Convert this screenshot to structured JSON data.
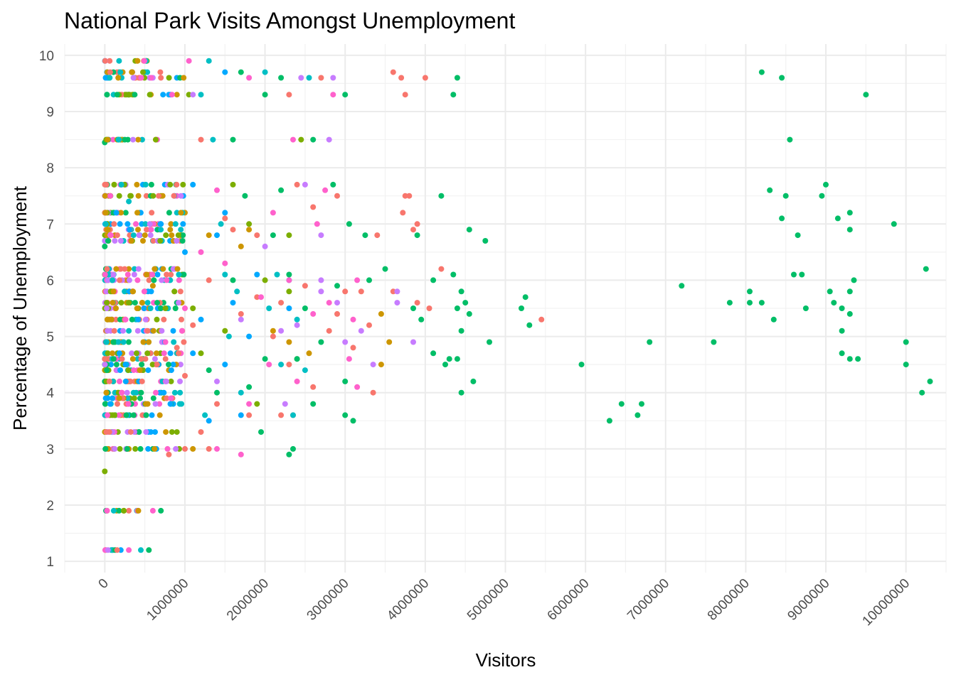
{
  "chart_data": {
    "type": "scatter",
    "title": "National Park Visits Amongst Unemployment",
    "xlabel": "Visitors",
    "ylabel": "Percentage of Unemployment",
    "xlim": [
      -500000,
      10500000
    ],
    "ylim": [
      0.8,
      10.2
    ],
    "x_ticks": [
      "0",
      "1000000",
      "2000000",
      "3000000",
      "4000000",
      "5000000",
      "6000000",
      "7000000",
      "8000000",
      "9000000",
      "10000000"
    ],
    "y_ticks": [
      "1",
      "2",
      "3",
      "4",
      "5",
      "6",
      "7",
      "8",
      "9",
      "10"
    ],
    "grid": true,
    "legend": "none",
    "colors": [
      "#F8766D",
      "#CD9600",
      "#7CAE00",
      "#00BE67",
      "#00BFC4",
      "#00A9FF",
      "#C77CFF",
      "#FF61CC"
    ],
    "series": [
      {
        "color": "#F8766D",
        "points": [
          [
            3600000,
            9.7
          ],
          [
            3700000,
            9.6
          ],
          [
            4000000,
            9.6
          ],
          [
            3750000,
            9.3
          ],
          [
            3750000,
            7.5
          ],
          [
            3800000,
            7.5
          ],
          [
            3720000,
            7.2
          ],
          [
            3900000,
            7.0
          ],
          [
            3850000,
            6.9
          ],
          [
            3400000,
            6.8
          ],
          [
            4200000,
            6.2
          ],
          [
            3900000,
            5.6
          ],
          [
            4050000,
            5.5
          ],
          [
            5450000,
            5.3
          ],
          [
            3600000,
            5.8
          ],
          [
            3000000,
            5.8
          ],
          [
            3200000,
            5.8
          ],
          [
            2500000,
            5.9
          ],
          [
            2200000,
            5.6
          ],
          [
            1900000,
            5.7
          ],
          [
            1700000,
            5.4
          ],
          [
            2100000,
            5.0
          ],
          [
            2800000,
            5.1
          ],
          [
            3300000,
            5.2
          ],
          [
            3100000,
            4.8
          ],
          [
            2300000,
            4.5
          ],
          [
            2600000,
            4.1
          ],
          [
            1400000,
            3.8
          ],
          [
            2200000,
            3.6
          ],
          [
            1300000,
            3.0
          ],
          [
            1000000,
            3.0
          ],
          [
            800000,
            2.9
          ],
          [
            1200000,
            3.3
          ],
          [
            1000000,
            4.3
          ],
          [
            2400000,
            7.7
          ],
          [
            2600000,
            7.3
          ],
          [
            2900000,
            7.5
          ],
          [
            1500000,
            7.1
          ],
          [
            1600000,
            6.9
          ],
          [
            1900000,
            6.8
          ],
          [
            2700000,
            9.6
          ],
          [
            2300000,
            9.3
          ],
          [
            1200000,
            8.5
          ],
          [
            700000,
            9.6
          ],
          [
            400000,
            9.9
          ],
          [
            2900000,
            5.4
          ],
          [
            3350000,
            4.0
          ],
          [
            1800000,
            3.6
          ],
          [
            2350000,
            3.6
          ],
          [
            900000,
            4.8
          ],
          [
            1100000,
            5.2
          ],
          [
            1300000,
            6.0
          ],
          [
            300000,
            1.9
          ],
          [
            100000,
            1.2
          ]
        ]
      },
      {
        "color": "#CD9600",
        "points": [
          [
            1000000,
            7.2
          ],
          [
            1300000,
            6.8
          ],
          [
            1800000,
            6.9
          ],
          [
            2300000,
            4.9
          ],
          [
            3450000,
            5.4
          ],
          [
            3450000,
            4.5
          ],
          [
            3550000,
            4.9
          ],
          [
            2100000,
            5.1
          ],
          [
            600000,
            5.9
          ],
          [
            900000,
            9.3
          ],
          [
            400000,
            7.7
          ],
          [
            300000,
            6.2
          ],
          [
            800000,
            4.4
          ],
          [
            1100000,
            3.0
          ],
          [
            200000,
            3.6
          ],
          [
            100000,
            3.3
          ],
          [
            0,
            4.6
          ],
          [
            500000,
            5.8
          ],
          [
            1700000,
            6.6
          ],
          [
            2550000,
            4.7
          ]
        ]
      },
      {
        "color": "#7CAE00",
        "points": [
          [
            0,
            2.6
          ],
          [
            2300000,
            5.8
          ],
          [
            2400000,
            4.6
          ],
          [
            2300000,
            6.8
          ],
          [
            1600000,
            7.7
          ],
          [
            1800000,
            7.0
          ],
          [
            2000000,
            6.0
          ],
          [
            1500000,
            5.1
          ],
          [
            1200000,
            4.7
          ],
          [
            1900000,
            3.8
          ],
          [
            2450000,
            8.5
          ],
          [
            1050000,
            9.3
          ],
          [
            700000,
            7.5
          ],
          [
            600000,
            6.1
          ],
          [
            900000,
            3.3
          ],
          [
            1100000,
            5.5
          ],
          [
            200000,
            8.5
          ]
        ]
      },
      {
        "color": "#00BE67",
        "points": [
          [
            8200000,
            9.7
          ],
          [
            8450000,
            9.6
          ],
          [
            9500000,
            9.3
          ],
          [
            8550000,
            8.5
          ],
          [
            8300000,
            7.6
          ],
          [
            8500000,
            7.5
          ],
          [
            9000000,
            7.7
          ],
          [
            8950000,
            7.5
          ],
          [
            9300000,
            7.2
          ],
          [
            9150000,
            7.1
          ],
          [
            8450000,
            7.1
          ],
          [
            9300000,
            6.9
          ],
          [
            9850000,
            7.0
          ],
          [
            8650000,
            6.8
          ],
          [
            8600000,
            6.1
          ],
          [
            8700000,
            6.1
          ],
          [
            9350000,
            6.0
          ],
          [
            10250000,
            6.2
          ],
          [
            7200000,
            5.9
          ],
          [
            8050000,
            5.8
          ],
          [
            9050000,
            5.8
          ],
          [
            9300000,
            5.8
          ],
          [
            7800000,
            5.6
          ],
          [
            8050000,
            5.6
          ],
          [
            8200000,
            5.6
          ],
          [
            9100000,
            5.6
          ],
          [
            8750000,
            5.5
          ],
          [
            9200000,
            5.5
          ],
          [
            9300000,
            5.4
          ],
          [
            8350000,
            5.3
          ],
          [
            9200000,
            5.1
          ],
          [
            6800000,
            4.9
          ],
          [
            7600000,
            4.9
          ],
          [
            9200000,
            4.7
          ],
          [
            9300000,
            4.6
          ],
          [
            9400000,
            4.6
          ],
          [
            10000000,
            4.9
          ],
          [
            10000000,
            4.5
          ],
          [
            10300000,
            4.2
          ],
          [
            10200000,
            4.0
          ],
          [
            5950000,
            4.5
          ],
          [
            6450000,
            3.8
          ],
          [
            6700000,
            3.8
          ],
          [
            6300000,
            3.5
          ],
          [
            6650000,
            3.6
          ],
          [
            5200000,
            5.5
          ],
          [
            5250000,
            5.7
          ],
          [
            5300000,
            5.2
          ],
          [
            4800000,
            4.9
          ],
          [
            4600000,
            4.2
          ],
          [
            4450000,
            4.0
          ],
          [
            4400000,
            4.6
          ],
          [
            4250000,
            4.5
          ],
          [
            4300000,
            4.6
          ],
          [
            4100000,
            4.7
          ],
          [
            4450000,
            5.1
          ],
          [
            4550000,
            5.4
          ],
          [
            4500000,
            5.6
          ],
          [
            4400000,
            5.5
          ],
          [
            3950000,
            5.3
          ],
          [
            3850000,
            5.5
          ],
          [
            4450000,
            5.8
          ],
          [
            4100000,
            6.0
          ],
          [
            4350000,
            6.1
          ],
          [
            3500000,
            6.2
          ],
          [
            4550000,
            6.9
          ],
          [
            4750000,
            6.7
          ],
          [
            3900000,
            6.8
          ],
          [
            3250000,
            6.8
          ],
          [
            4200000,
            7.5
          ],
          [
            4400000,
            9.6
          ],
          [
            4350000,
            9.3
          ],
          [
            3000000,
            9.3
          ],
          [
            2850000,
            7.7
          ],
          [
            3050000,
            7.0
          ],
          [
            2900000,
            5.9
          ],
          [
            3300000,
            6.0
          ],
          [
            3000000,
            4.2
          ],
          [
            3100000,
            3.5
          ],
          [
            3000000,
            3.6
          ],
          [
            2400000,
            4.6
          ],
          [
            2600000,
            3.8
          ],
          [
            2300000,
            2.9
          ],
          [
            2350000,
            3.0
          ],
          [
            1950000,
            3.3
          ],
          [
            1600000,
            8.5
          ],
          [
            1700000,
            9.7
          ],
          [
            2000000,
            9.3
          ],
          [
            1750000,
            7.5
          ],
          [
            2200000,
            7.6
          ],
          [
            2100000,
            6.8
          ],
          [
            2300000,
            6.1
          ],
          [
            2500000,
            5.5
          ],
          [
            2700000,
            4.9
          ],
          [
            2000000,
            4.6
          ],
          [
            1800000,
            4.1
          ],
          [
            1400000,
            4.0
          ],
          [
            700000,
            1.9
          ],
          [
            550000,
            1.2
          ],
          [
            0,
            8.45
          ],
          [
            0,
            6.6
          ],
          [
            2600000,
            8.5
          ],
          [
            2200000,
            9.6
          ],
          [
            1600000,
            6.0
          ],
          [
            900000,
            5.6
          ],
          [
            1300000,
            4.4
          ],
          [
            600000,
            3.0
          ]
        ]
      },
      {
        "color": "#00BFC4",
        "points": [
          [
            1300000,
            9.9
          ],
          [
            1200000,
            9.3
          ],
          [
            1350000,
            8.5
          ],
          [
            900000,
            7.2
          ],
          [
            1500000,
            6.1
          ],
          [
            1650000,
            5.8
          ],
          [
            2300000,
            6.0
          ],
          [
            2400000,
            5.3
          ],
          [
            2500000,
            4.4
          ],
          [
            2200000,
            4.5
          ],
          [
            1250000,
            3.6
          ],
          [
            450000,
            1.2
          ],
          [
            400000,
            1.9
          ],
          [
            2000000,
            9.7
          ],
          [
            2550000,
            9.6
          ],
          [
            1450000,
            7.0
          ],
          [
            2050000,
            5.5
          ],
          [
            1700000,
            4.0
          ],
          [
            900000,
            4.7
          ],
          [
            600000,
            6.7
          ],
          [
            300000,
            7.4
          ],
          [
            2350000,
            3.6
          ],
          [
            1550000,
            5.0
          ],
          [
            2150000,
            6.1
          ]
        ]
      },
      {
        "color": "#00A9FF",
        "points": [
          [
            1500000,
            9.7
          ],
          [
            900000,
            9.6
          ],
          [
            1100000,
            7.7
          ],
          [
            1500000,
            7.2
          ],
          [
            1000000,
            6.5
          ],
          [
            1600000,
            5.6
          ],
          [
            1800000,
            5.0
          ],
          [
            1500000,
            4.5
          ],
          [
            1700000,
            3.6
          ],
          [
            1300000,
            3.5
          ],
          [
            800000,
            9.3
          ],
          [
            700000,
            7.0
          ],
          [
            500000,
            4.9
          ],
          [
            200000,
            1.2
          ],
          [
            1400000,
            6.8
          ],
          [
            1900000,
            6.1
          ],
          [
            1200000,
            5.3
          ],
          [
            1100000,
            4.7
          ],
          [
            2300000,
            5.5
          ]
        ]
      },
      {
        "color": "#C77CFF",
        "points": [
          [
            2850000,
            9.6
          ],
          [
            2450000,
            9.6
          ],
          [
            2800000,
            8.5
          ],
          [
            2500000,
            7.7
          ],
          [
            2700000,
            6.8
          ],
          [
            3650000,
            5.8
          ],
          [
            3850000,
            4.9
          ],
          [
            3650000,
            5.6
          ],
          [
            3200000,
            5.1
          ],
          [
            3350000,
            4.5
          ],
          [
            2900000,
            5.6
          ],
          [
            2700000,
            5.8
          ],
          [
            2200000,
            5.1
          ],
          [
            3000000,
            4.9
          ],
          [
            2250000,
            3.8
          ],
          [
            2400000,
            5.2
          ],
          [
            2700000,
            6.0
          ],
          [
            1100000,
            9.3
          ],
          [
            600000,
            9.6
          ],
          [
            1400000,
            4.2
          ],
          [
            1700000,
            5.3
          ],
          [
            2000000,
            6.6
          ],
          [
            500000,
            3.6
          ],
          [
            700000,
            4.0
          ]
        ]
      },
      {
        "color": "#FF61CC",
        "points": [
          [
            1050000,
            9.9
          ],
          [
            1800000,
            9.6
          ],
          [
            2850000,
            9.3
          ],
          [
            2350000,
            8.5
          ],
          [
            2750000,
            7.6
          ],
          [
            2650000,
            7.0
          ],
          [
            3150000,
            6.0
          ],
          [
            2800000,
            5.6
          ],
          [
            3100000,
            5.3
          ],
          [
            3150000,
            4.1
          ],
          [
            3050000,
            4.6
          ],
          [
            1700000,
            2.9
          ],
          [
            1400000,
            3.0
          ],
          [
            1800000,
            3.8
          ],
          [
            2050000,
            4.5
          ],
          [
            2300000,
            6.0
          ],
          [
            1950000,
            5.7
          ],
          [
            600000,
            1.9
          ],
          [
            300000,
            1.2
          ],
          [
            2600000,
            5.4
          ],
          [
            1400000,
            7.6
          ],
          [
            1200000,
            6.5
          ],
          [
            1000000,
            5.5
          ],
          [
            700000,
            4.2
          ],
          [
            2100000,
            7.2
          ],
          [
            2400000,
            4.2
          ],
          [
            1500000,
            6.3
          ]
        ]
      }
    ]
  }
}
